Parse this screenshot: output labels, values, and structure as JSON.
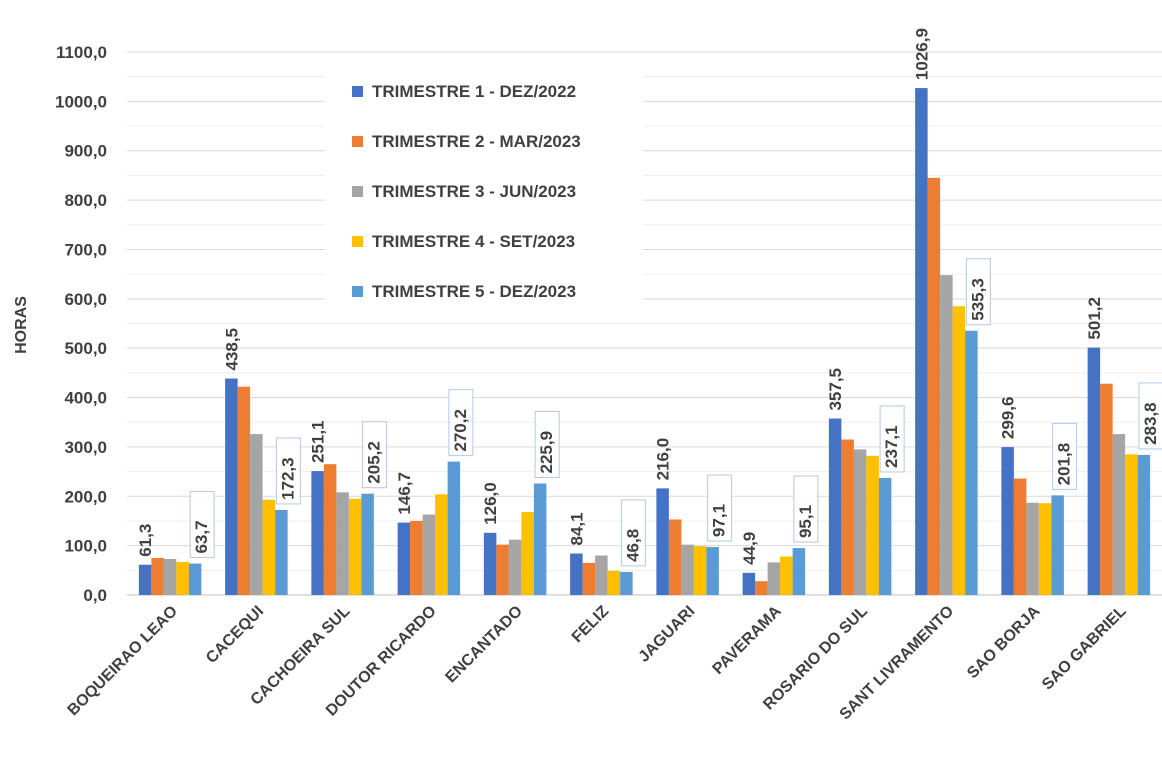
{
  "chart_data": {
    "type": "bar",
    "title": "",
    "xlabel": "",
    "ylabel": "HORAS",
    "ylim": [
      0,
      1100
    ],
    "y_tick_step": 100,
    "y_tick_labels": [
      "0,0",
      "100,0",
      "200,0",
      "300,0",
      "400,0",
      "500,0",
      "600,0",
      "700,0",
      "800,0",
      "900,0",
      "1000,0",
      "1100,0"
    ],
    "grid": true,
    "legend_position": "top-center",
    "categories": [
      "BOQUEIRAO LEAO",
      "CACEQUI",
      "CACHOEIRA SUL",
      "DOUTOR RICARDO",
      "ENCANTADO",
      "FELIZ",
      "JAGUARI",
      "PAVERAMA",
      "ROSARIO DO SUL",
      "SANT LIVRAMENTO",
      "SAO BORJA",
      "SAO GABRIEL"
    ],
    "series": [
      {
        "name": "TRIMESTRE 1 - DEZ/2022",
        "color": "#4472C4",
        "values": [
          61.3,
          438.5,
          251.1,
          146.7,
          126.0,
          84.1,
          216.0,
          44.9,
          357.5,
          1026.9,
          299.6,
          501.2
        ]
      },
      {
        "name": "TRIMESTRE 2 - MAR/2023",
        "color": "#ED7D31",
        "values": [
          75,
          422,
          265,
          150,
          102,
          65,
          153,
          28,
          315,
          845,
          236,
          428
        ]
      },
      {
        "name": "TRIMESTRE 3 - JUN/2023",
        "color": "#A5A5A5",
        "values": [
          73,
          326,
          208,
          163,
          112,
          80,
          102,
          66,
          295,
          648,
          187,
          326
        ]
      },
      {
        "name": "TRIMESTRE 4 - SET/2023",
        "color": "#FFC000",
        "values": [
          67,
          193,
          195,
          204,
          168,
          49,
          99,
          78,
          282,
          585,
          186,
          285
        ]
      },
      {
        "name": "TRIMESTRE 5 - DEZ/2023",
        "color": "#5B9BD5",
        "values": [
          63.7,
          172.3,
          205.2,
          270.2,
          225.9,
          46.8,
          97.1,
          95.1,
          237.1,
          535.3,
          201.8,
          283.8
        ]
      }
    ],
    "data_labels": {
      "first_series": [
        "61,3",
        "438,5",
        "251,1",
        "146,7",
        "126,0",
        "84,1",
        "216,0",
        "44,9",
        "357,5",
        "1026,9",
        "299,6",
        "501,2"
      ],
      "last_series": [
        "63,7",
        "172,3",
        "205,2",
        "270,2",
        "225,9",
        "46,8",
        "97,1",
        "95,1",
        "237,1",
        "535,3",
        "201,8",
        "283,8"
      ]
    }
  }
}
